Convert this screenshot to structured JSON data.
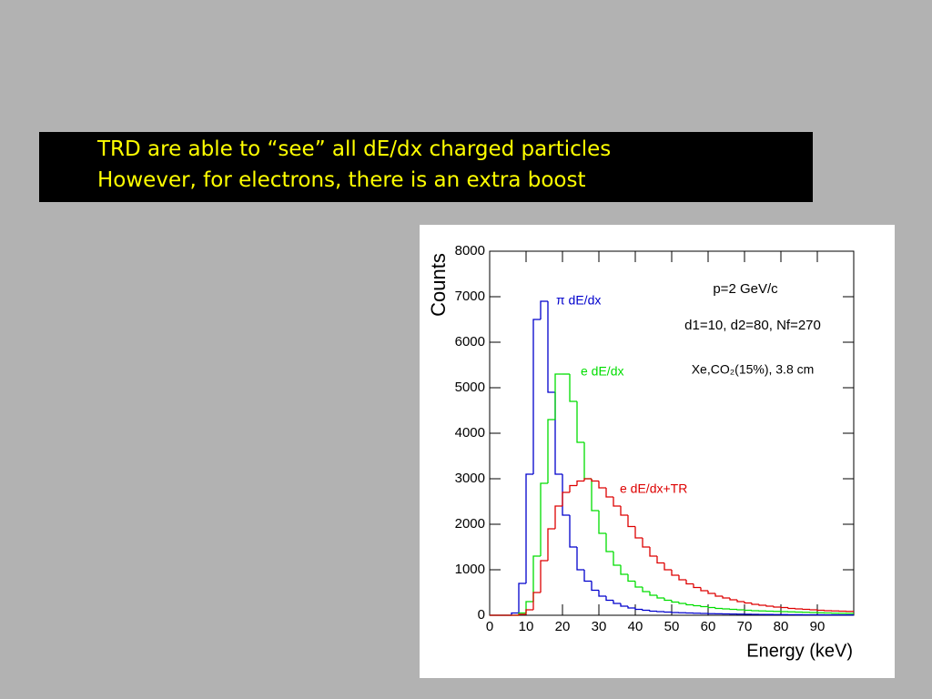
{
  "slide_text": [
    "TRD are able to “see” all dE/dx charged particles",
    "However, for electrons, there is an extra boost"
  ],
  "chart_data": {
    "type": "histogram",
    "xlabel": "Energy (keV)",
    "ylabel": "Counts",
    "annotations": [
      "p=2 GeV/c",
      "d1=10, d2=80, Nf=270",
      "Xe,CO₂(15%), 3.8 cm"
    ],
    "bins": [
      0,
      2,
      4,
      6,
      8,
      10,
      12,
      14,
      16,
      18,
      20,
      22,
      24,
      26,
      28,
      30,
      32,
      34,
      36,
      38,
      40,
      42,
      44,
      46,
      48,
      50,
      52,
      54,
      56,
      58,
      60,
      62,
      64,
      66,
      68,
      70,
      72,
      74,
      76,
      78,
      80,
      82,
      84,
      86,
      88,
      90,
      92,
      94,
      96,
      98,
      100
    ],
    "series": [
      {
        "name": "π dE/dx",
        "color": "#0000cc",
        "values": [
          0,
          0,
          0,
          50,
          700,
          3100,
          6500,
          6900,
          4900,
          3100,
          2200,
          1500,
          1000,
          750,
          550,
          420,
          330,
          260,
          200,
          160,
          130,
          110,
          90,
          80,
          70,
          60,
          55,
          50,
          45,
          40,
          35,
          32,
          30,
          28,
          25,
          22,
          20,
          18,
          16,
          15,
          14,
          12,
          11,
          10,
          10,
          9,
          8,
          8,
          7,
          7
        ]
      },
      {
        "name": "e dE/dx",
        "color": "#00dd00",
        "values": [
          0,
          0,
          0,
          0,
          50,
          300,
          1300,
          2900,
          4300,
          5300,
          5300,
          4700,
          3800,
          3000,
          2300,
          1800,
          1400,
          1100,
          900,
          750,
          620,
          520,
          440,
          380,
          330,
          290,
          260,
          230,
          210,
          190,
          170,
          150,
          140,
          130,
          120,
          110,
          100,
          95,
          90,
          85,
          80,
          75,
          70,
          65,
          60,
          55,
          50,
          45,
          42,
          40
        ]
      },
      {
        "name": "e dE/dx+TR",
        "color": "#dd0000",
        "values": [
          0,
          0,
          0,
          0,
          20,
          120,
          500,
          1200,
          1900,
          2400,
          2700,
          2850,
          2950,
          3000,
          2950,
          2800,
          2600,
          2400,
          2200,
          1950,
          1700,
          1500,
          1300,
          1150,
          1000,
          880,
          780,
          690,
          610,
          540,
          480,
          420,
          380,
          340,
          300,
          270,
          240,
          220,
          200,
          180,
          170,
          150,
          140,
          130,
          120,
          110,
          100,
          95,
          90,
          85
        ]
      }
    ],
    "xlim": [
      0,
      100
    ],
    "xticks": [
      0,
      10,
      20,
      30,
      40,
      50,
      60,
      70,
      80,
      90
    ],
    "ylim": [
      0,
      8000
    ],
    "yticks": [
      0,
      1000,
      2000,
      3000,
      4000,
      5000,
      6000,
      7000,
      8000
    ]
  }
}
